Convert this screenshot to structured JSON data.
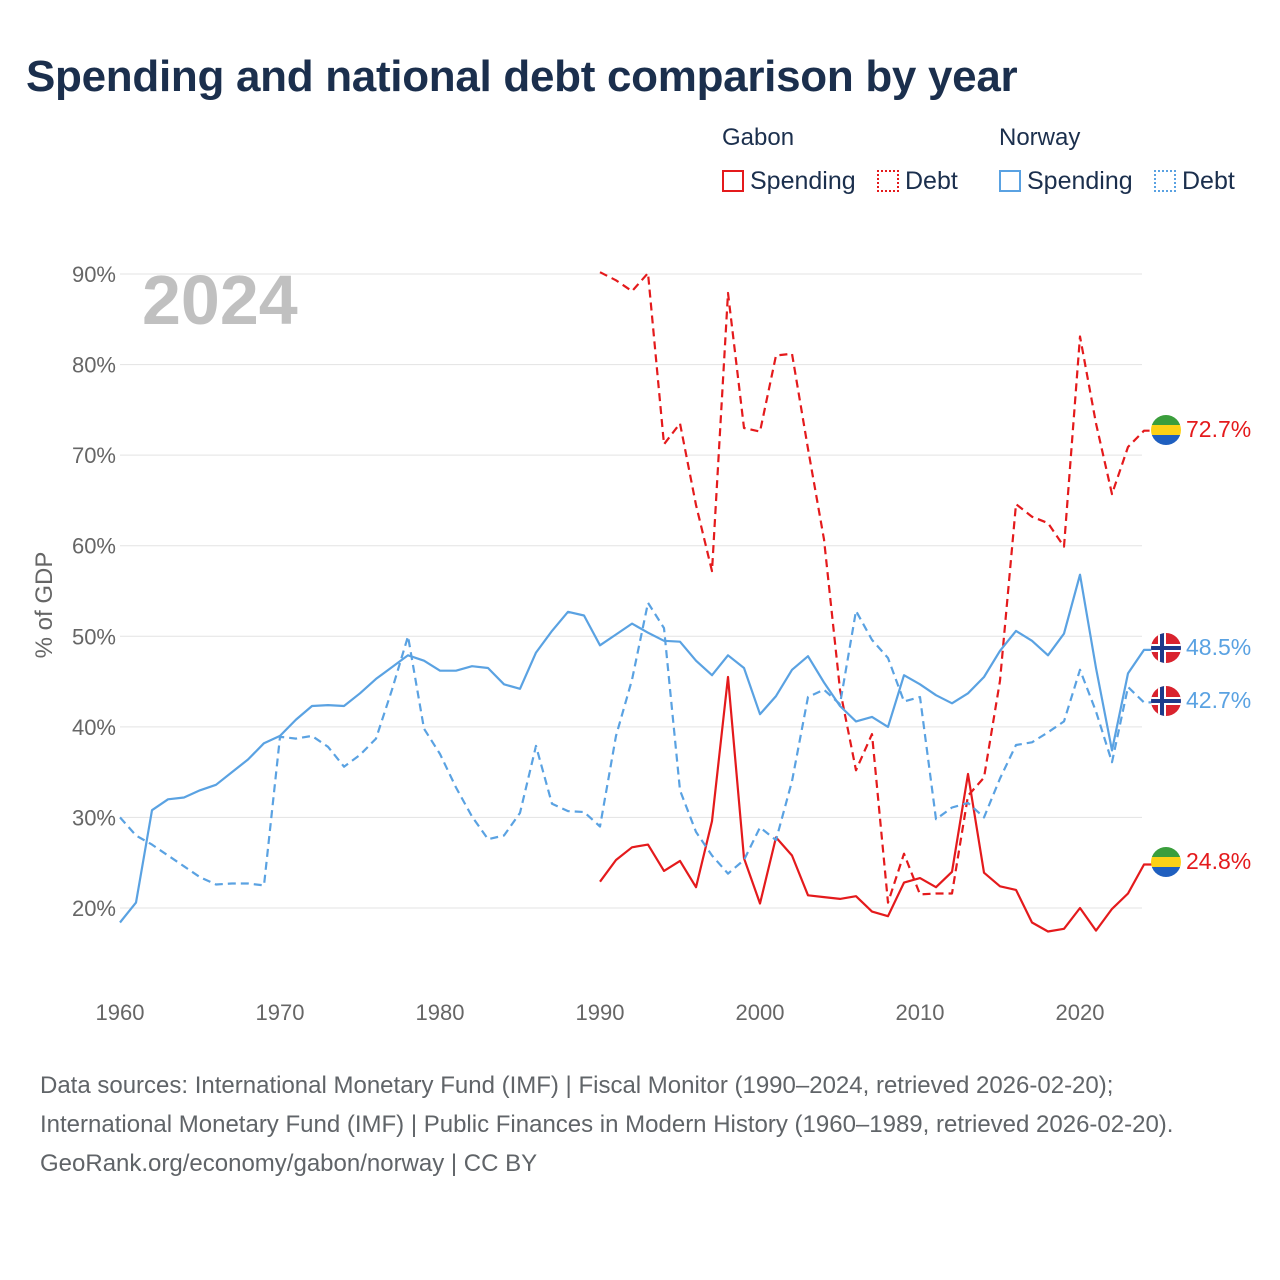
{
  "title": "Spending and national debt comparison by year",
  "legend": {
    "groups": [
      {
        "name": "Gabon",
        "items": [
          {
            "label": "Spending",
            "style": "solid",
            "color": "#e41a1c"
          },
          {
            "label": "Debt",
            "style": "dotted",
            "color": "#e41a1c"
          }
        ]
      },
      {
        "name": "Norway",
        "items": [
          {
            "label": "Spending",
            "style": "solid",
            "color": "#5aa2e2"
          },
          {
            "label": "Debt",
            "style": "dotted",
            "color": "#5aa2e2"
          }
        ]
      }
    ]
  },
  "footer": {
    "sources": "Data sources: International Monetary Fund (IMF) | Fiscal Monitor (1990–2024, retrieved 2026-02-20); International Monetary Fund (IMF) | Public Finances in Modern History (1960–1989, retrieved 2026-02-20).",
    "credit": "GeoRank.org/economy/gabon/norway | CC BY"
  },
  "chart_data": {
    "type": "line",
    "year_watermark": "2024",
    "ylabel": "% of GDP",
    "xlabel": "",
    "xlim": [
      1960,
      2024
    ],
    "ylim": [
      14,
      91
    ],
    "x_ticks": [
      1960,
      1970,
      1980,
      1990,
      2000,
      2010,
      2020
    ],
    "y_ticks": [
      20,
      30,
      40,
      50,
      60,
      70,
      80,
      90
    ],
    "y_tick_labels": [
      "20%",
      "30%",
      "40%",
      "50%",
      "60%",
      "70%",
      "80%",
      "90%"
    ],
    "colors": {
      "gabon": "#e41a1c",
      "norway": "#5aa2e2"
    },
    "series": [
      {
        "name": "Gabon Debt",
        "country": "Gabon",
        "metric": "Debt",
        "dash": "dashed",
        "color": "#e41a1c",
        "start_year": 1990,
        "end_label": "72.7%",
        "values": [
          90.2,
          89.3,
          88.1,
          90.1,
          71.2,
          73.5,
          64.5,
          57.2,
          87.9,
          73.0,
          72.6,
          81.0,
          81.2,
          70.7,
          60.7,
          44.1,
          35.2,
          39.2,
          20.6,
          26.0,
          21.5,
          21.6,
          21.6,
          32.4,
          34.4,
          45.1,
          64.6,
          63.2,
          62.5,
          59.9,
          83.1,
          73.5,
          65.7,
          70.9,
          72.7
        ]
      },
      {
        "name": "Gabon Spending",
        "country": "Gabon",
        "metric": "Spending",
        "dash": "solid",
        "color": "#e41a1c",
        "start_year": 1990,
        "end_label": "24.8%",
        "values": [
          22.9,
          25.3,
          26.7,
          27.0,
          24.1,
          25.2,
          22.3,
          29.6,
          45.5,
          25.5,
          20.5,
          27.8,
          25.8,
          21.4,
          21.2,
          21.0,
          21.3,
          19.6,
          19.1,
          22.8,
          23.3,
          22.3,
          24.0,
          34.8,
          23.9,
          22.4,
          22.0,
          18.4,
          17.4,
          17.7,
          20.0,
          17.5,
          19.9,
          21.6,
          24.8
        ]
      },
      {
        "name": "Norway Spending",
        "country": "Norway",
        "metric": "Spending",
        "dash": "solid",
        "color": "#5aa2e2",
        "start_year": 1960,
        "end_label": "48.5%",
        "values": [
          18.4,
          20.6,
          30.8,
          32.0,
          32.2,
          33.0,
          33.6,
          35.0,
          36.4,
          38.2,
          39.0,
          40.8,
          42.3,
          42.4,
          42.3,
          43.7,
          45.3,
          46.6,
          47.9,
          47.3,
          46.2,
          46.2,
          46.7,
          46.5,
          44.7,
          44.2,
          48.2,
          50.6,
          52.7,
          52.3,
          49.0,
          50.2,
          51.4,
          50.4,
          49.5,
          49.4,
          47.3,
          45.7,
          47.9,
          46.5,
          41.4,
          43.4,
          46.3,
          47.8,
          44.9,
          42.3,
          40.6,
          41.1,
          40.0,
          45.7,
          44.7,
          43.5,
          42.6,
          43.7,
          45.5,
          48.4,
          50.6,
          49.5,
          47.9,
          50.3,
          56.8,
          46.5,
          37.4,
          45.9,
          48.5
        ]
      },
      {
        "name": "Norway Debt",
        "country": "Norway",
        "metric": "Debt",
        "dash": "dashed",
        "color": "#5aa2e2",
        "start_year": 1960,
        "end_label": "42.7%",
        "values": [
          30.0,
          28.0,
          27.0,
          25.8,
          24.6,
          23.4,
          22.6,
          22.7,
          22.7,
          22.5,
          38.9,
          38.7,
          39.0,
          37.8,
          35.6,
          36.9,
          38.7,
          44.1,
          50.0,
          39.8,
          37.0,
          33.3,
          30.1,
          27.6,
          28.0,
          30.5,
          37.9,
          31.5,
          30.7,
          30.6,
          29.0,
          39.0,
          45.2,
          53.7,
          50.9,
          33.0,
          28.4,
          25.8,
          23.8,
          25.3,
          28.9,
          27.5,
          34.0,
          43.3,
          44.1,
          42.5,
          52.8,
          49.6,
          47.6,
          42.8,
          43.3,
          29.8,
          31.1,
          31.6,
          30.0,
          34.3,
          38.0,
          38.3,
          39.4,
          40.6,
          46.3,
          41.7,
          36.1,
          44.4,
          42.7
        ]
      }
    ]
  }
}
